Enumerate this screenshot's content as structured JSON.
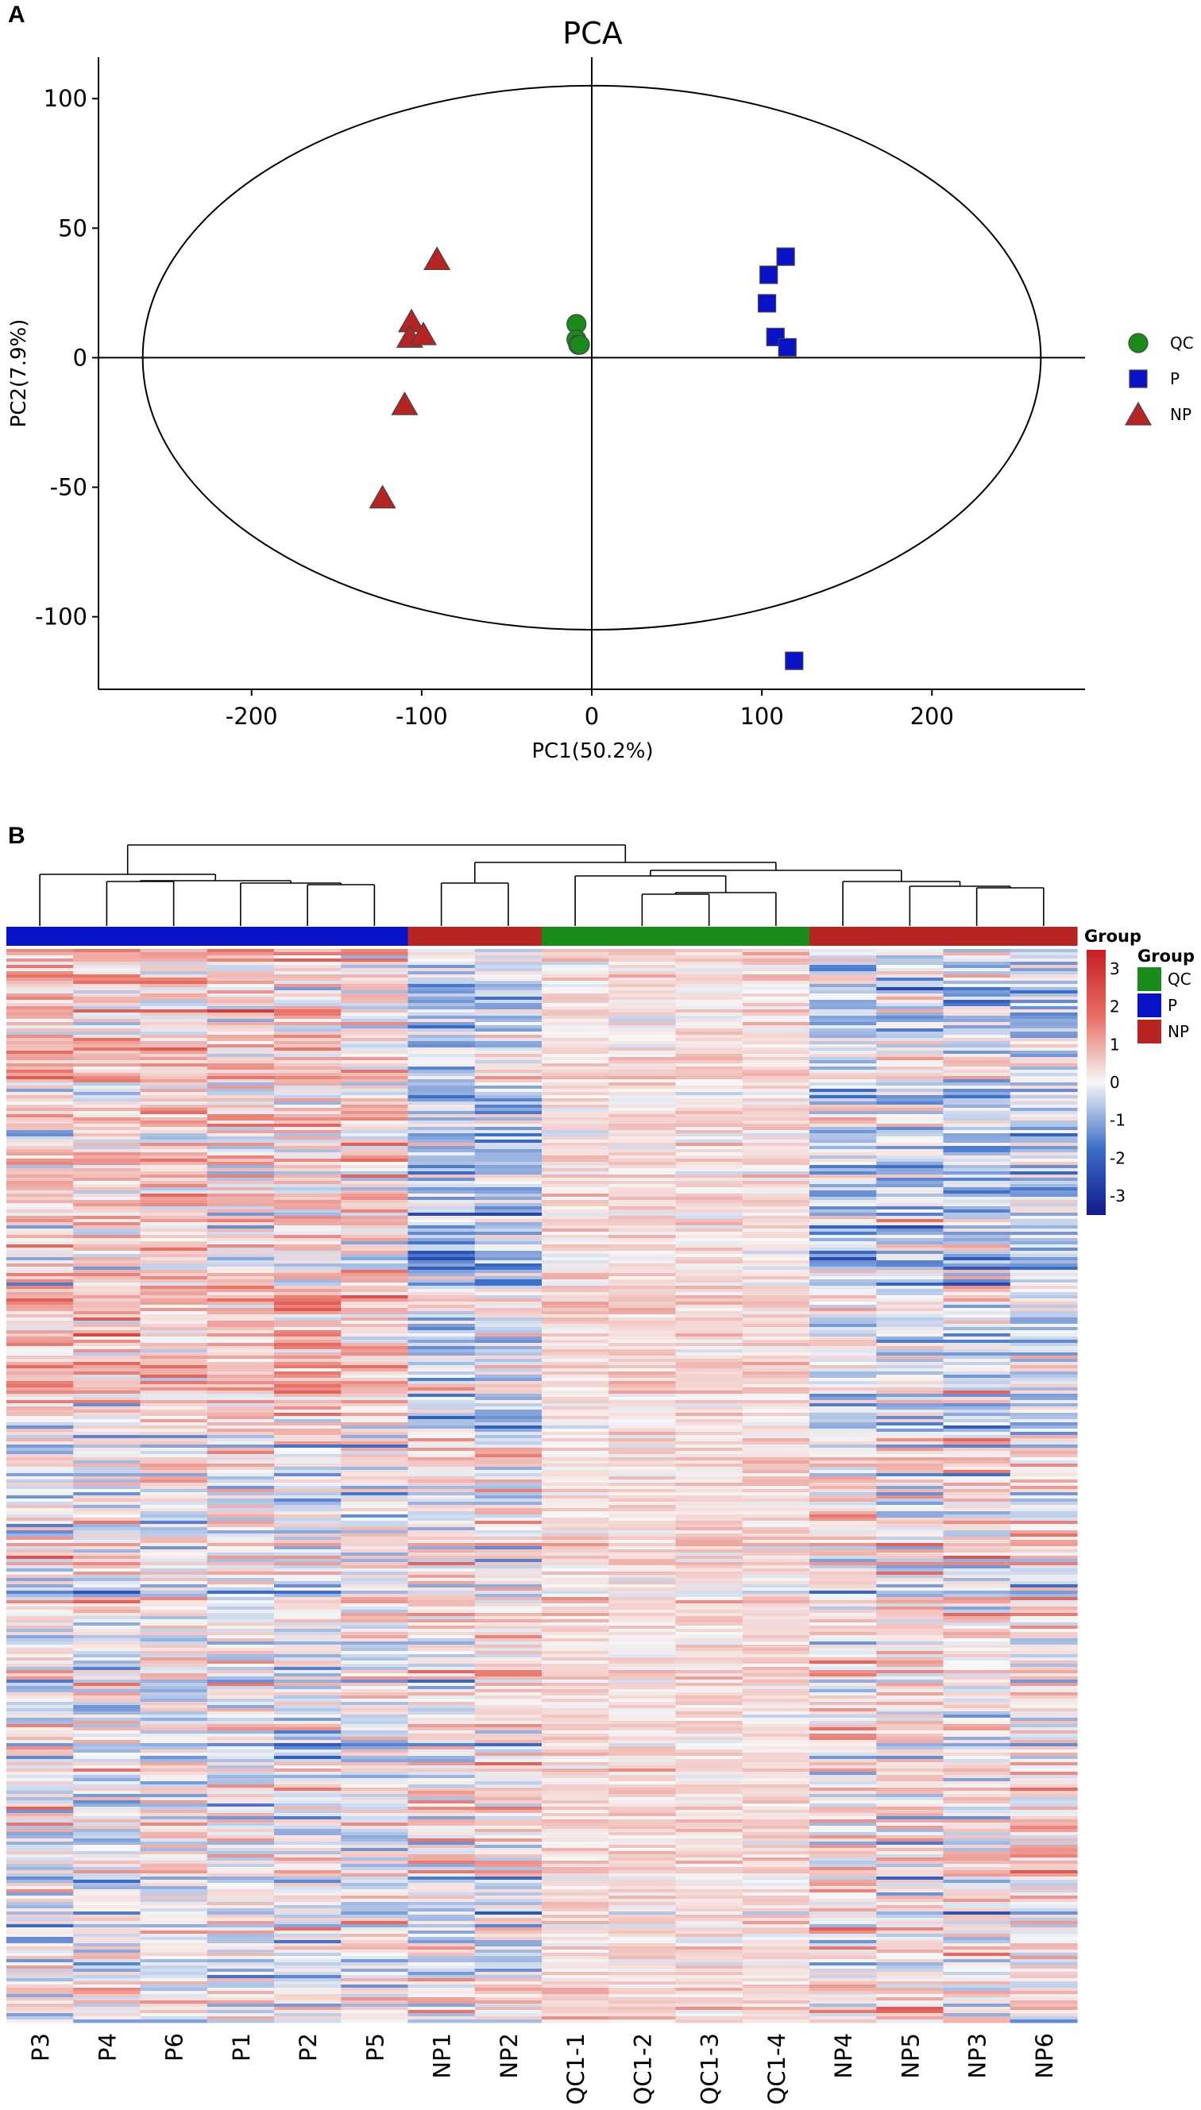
{
  "panel_a_label": "A",
  "panel_b_label": "B",
  "colors": {
    "QC": "#1a8a1a",
    "P": "#0a12c8",
    "NP": "#b62424",
    "heat_low": "#101a8c",
    "heat_mid": "#f7f7f7",
    "heat_high": "#d8262a"
  },
  "chart_data": [
    {
      "type": "scatter",
      "title": "PCA",
      "xlabel": "PC1(50.2%)",
      "ylabel": "PC2(7.9%)",
      "xlim": [
        -290,
        290
      ],
      "ylim": [
        -128,
        116
      ],
      "xticks": [
        -200,
        -100,
        0,
        100,
        200
      ],
      "yticks": [
        -100,
        -50,
        0,
        50,
        100
      ],
      "xtick_labels": [
        "-200",
        "-100",
        "0",
        "100",
        "200"
      ],
      "ytick_labels": [
        "-100",
        "-50",
        "0",
        "50",
        "100"
      ],
      "grid": false,
      "legend_position": "right",
      "ellipse": {
        "center": [
          0,
          0
        ],
        "semi_axis_x": 264,
        "semi_axis_y": 105
      },
      "series": [
        {
          "name": "QC",
          "marker": "circle",
          "points": [
            [
              -9,
              13
            ],
            [
              -9,
              7
            ],
            [
              -8,
              5
            ],
            [
              -7,
              5
            ]
          ]
        },
        {
          "name": "P",
          "marker": "square",
          "points": [
            [
              114,
              39
            ],
            [
              104,
              32
            ],
            [
              103,
              21
            ],
            [
              108,
              8
            ],
            [
              115,
              4
            ],
            [
              119,
              -117
            ]
          ]
        },
        {
          "name": "NP",
          "marker": "triangle",
          "points": [
            [
              -91,
              38
            ],
            [
              -106,
              14
            ],
            [
              -107,
              8
            ],
            [
              -99,
              9
            ],
            [
              -110,
              -18
            ],
            [
              -123,
              -54
            ]
          ]
        }
      ]
    },
    {
      "type": "heatmap",
      "columns": [
        "P3",
        "P4",
        "P6",
        "P1",
        "P2",
        "P5",
        "NP1",
        "NP2",
        "QC1-1",
        "QC1-2",
        "QC1-3",
        "QC1-4",
        "NP4",
        "NP5",
        "NP3",
        "NP6"
      ],
      "column_groups": [
        "P",
        "P",
        "P",
        "P",
        "P",
        "P",
        "NP",
        "NP",
        "QC",
        "QC",
        "QC",
        "QC",
        "NP",
        "NP",
        "NP",
        "NP"
      ],
      "colorbar": {
        "range": [
          -3.5,
          3.5
        ],
        "ticks": [
          3,
          2,
          1,
          0,
          -1,
          -2,
          -3
        ],
        "tick_labels": [
          "3",
          "2",
          "1",
          "0",
          "-1",
          "-2",
          "-3"
        ]
      },
      "annotation_label": "Group",
      "legend_title": "Group",
      "legend_entries": [
        "QC",
        "P",
        "NP"
      ],
      "dendrogram": "hierarchical clustering of columns",
      "column_group_character": {
        "P": 0.55,
        "NP1-NP2": -0.2,
        "QC": 0.3,
        "NP4-NP6": -0.05
      }
    }
  ]
}
